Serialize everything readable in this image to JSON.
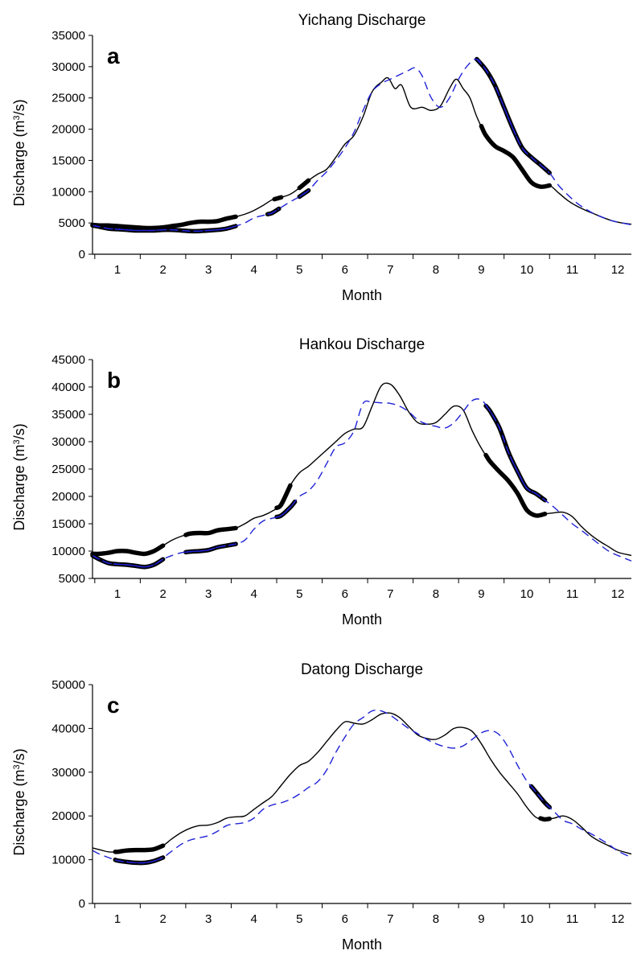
{
  "chart_data": [
    {
      "type": "line",
      "title": "Yichang Discharge",
      "panel_label": "a",
      "xlabel": "Month",
      "ylabel_prefix": "Discharge (m",
      "ylabel_sup": "3",
      "ylabel_suffix": "/s)",
      "xlim": [
        0.45,
        12.3
      ],
      "ylim": [
        0,
        35000
      ],
      "yticks": [
        0,
        5000,
        10000,
        15000,
        20000,
        25000,
        30000,
        35000
      ],
      "xticks": [
        1,
        2,
        3,
        4,
        5,
        6,
        7,
        8,
        9,
        10,
        11,
        12
      ],
      "x_boundaries": [
        0.5,
        1.5,
        2.5,
        3.5,
        4.5,
        5.5,
        6.5,
        7.5,
        8.5,
        9.5,
        10.5,
        11.5
      ],
      "series": [
        {
          "style": "solid",
          "color": "#000000",
          "x": [
            0.45,
            0.6,
            0.8,
            1.0,
            1.2,
            1.4,
            1.6,
            1.8,
            2.0,
            2.2,
            2.4,
            2.6,
            2.8,
            3.0,
            3.2,
            3.4,
            3.6,
            3.8,
            4.0,
            4.2,
            4.4,
            4.6,
            4.8,
            5.0,
            5.2,
            5.4,
            5.6,
            5.8,
            6.0,
            6.2,
            6.4,
            6.6,
            6.8,
            6.95,
            7.1,
            7.25,
            7.45,
            7.7,
            7.9,
            8.1,
            8.3,
            8.45,
            8.6,
            8.75,
            8.9,
            9.1,
            9.3,
            9.5,
            9.7,
            9.9,
            10.1,
            10.3,
            10.5,
            10.7,
            10.9,
            11.1,
            11.3,
            11.5,
            11.7,
            11.9,
            12.1,
            12.3
          ],
          "y": [
            4700,
            4600,
            4600,
            4500,
            4400,
            4300,
            4200,
            4200,
            4300,
            4500,
            4700,
            5000,
            5200,
            5200,
            5300,
            5700,
            6000,
            6400,
            7000,
            7800,
            8700,
            9100,
            9600,
            10600,
            11800,
            12800,
            13600,
            15500,
            17600,
            19000,
            22000,
            26000,
            27500,
            28200,
            26500,
            27000,
            23500,
            23500,
            23000,
            23700,
            26500,
            28000,
            26500,
            25000,
            22000,
            19000,
            17300,
            16500,
            15500,
            13500,
            11500,
            10800,
            11000,
            9800,
            8600,
            7700,
            7000,
            6400,
            5800,
            5300,
            5000,
            4800
          ],
          "bold_ranges": [
            [
              0.45,
              3.6
            ],
            [
              4.45,
              4.6
            ],
            [
              5.0,
              5.2
            ],
            [
              9.0,
              10.5
            ]
          ]
        },
        {
          "style": "dashed",
          "color": "#1f22d6",
          "x": [
            0.45,
            0.6,
            0.8,
            1.0,
            1.2,
            1.4,
            1.6,
            1.8,
            2.0,
            2.2,
            2.4,
            2.6,
            2.8,
            3.0,
            3.2,
            3.4,
            3.6,
            3.8,
            4.0,
            4.2,
            4.4,
            4.6,
            4.8,
            5.0,
            5.2,
            5.4,
            5.6,
            5.8,
            6.0,
            6.2,
            6.4,
            6.6,
            6.8,
            7.0,
            7.2,
            7.4,
            7.55,
            7.7,
            7.9,
            8.1,
            8.3,
            8.5,
            8.7,
            8.9,
            9.1,
            9.3,
            9.5,
            9.7,
            9.9,
            10.1,
            10.3,
            10.5,
            10.7,
            10.9,
            11.1,
            11.3,
            11.5,
            11.7,
            11.9,
            12.1,
            12.3
          ],
          "y": [
            4600,
            4400,
            4100,
            4000,
            3900,
            3800,
            3800,
            3800,
            3900,
            3900,
            3800,
            3700,
            3700,
            3800,
            3900,
            4100,
            4500,
            5000,
            5800,
            6200,
            6600,
            7500,
            8400,
            9200,
            10200,
            11800,
            13200,
            15000,
            17000,
            19500,
            23000,
            26000,
            27300,
            28000,
            28700,
            29400,
            29800,
            28500,
            25000,
            23500,
            25000,
            28000,
            30200,
            31200,
            29500,
            27000,
            23500,
            20000,
            17000,
            15500,
            14300,
            13000,
            11000,
            9500,
            8200,
            7200,
            6400,
            5800,
            5300,
            5000,
            4700
          ],
          "bold_ranges": [
            [
              0.45,
              3.6
            ],
            [
              4.3,
              4.55
            ],
            [
              5.0,
              5.2
            ],
            [
              8.9,
              10.5
            ]
          ]
        }
      ]
    },
    {
      "type": "line",
      "title": "Hankou Discharge",
      "panel_label": "b",
      "xlabel": "Month",
      "ylabel_prefix": "Discharge (m",
      "ylabel_sup": "3",
      "ylabel_suffix": "/s)",
      "xlim": [
        0.45,
        12.3
      ],
      "ylim": [
        5000,
        45000
      ],
      "yticks": [
        5000,
        10000,
        15000,
        20000,
        25000,
        30000,
        35000,
        40000,
        45000
      ],
      "xticks": [
        1,
        2,
        3,
        4,
        5,
        6,
        7,
        8,
        9,
        10,
        11,
        12
      ],
      "x_boundaries": [
        0.5,
        1.5,
        2.5,
        3.5,
        4.5,
        5.5,
        6.5,
        7.5,
        8.5,
        9.5,
        10.5,
        11.5
      ],
      "series": [
        {
          "style": "solid",
          "color": "#000000",
          "x": [
            0.45,
            0.6,
            0.8,
            1.0,
            1.2,
            1.4,
            1.6,
            1.8,
            2.0,
            2.2,
            2.4,
            2.6,
            2.8,
            3.0,
            3.2,
            3.4,
            3.6,
            3.8,
            4.0,
            4.2,
            4.4,
            4.6,
            4.8,
            5.0,
            5.2,
            5.4,
            5.6,
            5.8,
            6.0,
            6.2,
            6.4,
            6.6,
            6.8,
            7.0,
            7.2,
            7.4,
            7.6,
            7.8,
            8.0,
            8.2,
            8.4,
            8.6,
            8.8,
            9.0,
            9.2,
            9.4,
            9.6,
            9.8,
            10.0,
            10.2,
            10.4,
            10.6,
            10.8,
            11.0,
            11.2,
            11.4,
            11.6,
            11.8,
            12.0,
            12.3
          ],
          "y": [
            9500,
            9500,
            9700,
            10000,
            10000,
            9700,
            9500,
            10000,
            11000,
            12000,
            12700,
            13200,
            13300,
            13300,
            13800,
            14000,
            14200,
            15000,
            16000,
            16500,
            17300,
            18500,
            22000,
            24300,
            25500,
            27000,
            28500,
            30000,
            31500,
            32300,
            32700,
            36500,
            40200,
            40500,
            38500,
            35500,
            33500,
            33200,
            33500,
            35000,
            36500,
            35800,
            32000,
            28800,
            26300,
            24500,
            22800,
            20500,
            17500,
            16500,
            16800,
            17000,
            17100,
            16300,
            14500,
            13000,
            11800,
            10800,
            9800,
            9200
          ],
          "bold_ranges": [
            [
              0.45,
              2.0
            ],
            [
              2.5,
              3.6
            ],
            [
              4.5,
              4.8
            ],
            [
              9.1,
              10.4
            ]
          ]
        },
        {
          "style": "dashed",
          "color": "#1f22d6",
          "x": [
            0.45,
            0.6,
            0.8,
            1.0,
            1.2,
            1.4,
            1.6,
            1.8,
            2.0,
            2.2,
            2.4,
            2.6,
            2.8,
            3.0,
            3.2,
            3.4,
            3.6,
            3.8,
            4.0,
            4.2,
            4.4,
            4.6,
            4.8,
            5.0,
            5.2,
            5.4,
            5.6,
            5.8,
            6.0,
            6.2,
            6.4,
            6.6,
            6.8,
            7.0,
            7.2,
            7.4,
            7.6,
            7.8,
            8.0,
            8.2,
            8.4,
            8.6,
            8.8,
            9.0,
            9.2,
            9.4,
            9.6,
            9.8,
            10.0,
            10.2,
            10.4,
            10.6,
            10.8,
            11.0,
            11.2,
            11.4,
            11.6,
            11.8,
            12.0,
            12.3
          ],
          "y": [
            9200,
            8500,
            7800,
            7600,
            7500,
            7300,
            7100,
            7500,
            8500,
            9200,
            9700,
            9900,
            10000,
            10200,
            10700,
            11000,
            11300,
            12000,
            14000,
            15500,
            16000,
            16500,
            18000,
            20000,
            21000,
            23000,
            26000,
            29000,
            29800,
            32000,
            37000,
            37200,
            37100,
            37000,
            36500,
            35500,
            34000,
            33200,
            32800,
            32500,
            33500,
            35500,
            37500,
            37600,
            35500,
            32500,
            28000,
            24500,
            21500,
            20500,
            19300,
            18000,
            16500,
            15000,
            13800,
            12500,
            11200,
            10000,
            9200,
            8200
          ],
          "bold_ranges": [
            [
              0.45,
              2.0
            ],
            [
              2.5,
              3.6
            ],
            [
              4.5,
              4.9
            ],
            [
              9.1,
              10.4
            ]
          ]
        }
      ]
    },
    {
      "type": "line",
      "title": "Datong Discharge",
      "panel_label": "c",
      "xlabel": "Month",
      "ylabel_prefix": "Discharge (m",
      "ylabel_sup": "3",
      "ylabel_suffix": "/s)",
      "xlim": [
        0.45,
        12.3
      ],
      "ylim": [
        0,
        50000
      ],
      "yticks": [
        0,
        10000,
        20000,
        30000,
        40000,
        50000
      ],
      "xticks": [
        1,
        2,
        3,
        4,
        5,
        6,
        7,
        8,
        9,
        10,
        11,
        12
      ],
      "x_boundaries": [
        0.5,
        1.5,
        2.5,
        3.5,
        4.5,
        5.5,
        6.5,
        7.5,
        8.5,
        9.5,
        10.5,
        11.5
      ],
      "series": [
        {
          "style": "solid",
          "color": "#000000",
          "x": [
            0.45,
            0.6,
            0.8,
            1.0,
            1.2,
            1.4,
            1.6,
            1.8,
            2.0,
            2.2,
            2.4,
            2.6,
            2.8,
            3.0,
            3.2,
            3.4,
            3.6,
            3.8,
            4.0,
            4.2,
            4.4,
            4.6,
            4.8,
            5.0,
            5.2,
            5.4,
            5.6,
            5.8,
            6.0,
            6.2,
            6.4,
            6.6,
            6.8,
            7.0,
            7.2,
            7.4,
            7.6,
            7.8,
            8.0,
            8.2,
            8.4,
            8.6,
            8.8,
            9.0,
            9.2,
            9.4,
            9.6,
            9.8,
            10.0,
            10.2,
            10.4,
            10.6,
            10.8,
            11.0,
            11.2,
            11.4,
            11.6,
            11.8,
            12.0,
            12.3
          ],
          "y": [
            12700,
            12300,
            11800,
            11800,
            12100,
            12200,
            12200,
            12400,
            13200,
            14800,
            16200,
            17200,
            17800,
            17900,
            18500,
            19500,
            19800,
            20000,
            21500,
            23000,
            24500,
            27000,
            29500,
            31500,
            32500,
            34500,
            37000,
            39500,
            41500,
            41200,
            41000,
            42000,
            43300,
            43500,
            42500,
            40500,
            38500,
            37700,
            37500,
            38500,
            40000,
            40200,
            39300,
            36500,
            33000,
            30000,
            27500,
            25000,
            22000,
            19700,
            19200,
            19500,
            20000,
            19200,
            17500,
            15500,
            14200,
            13200,
            12200,
            11300
          ],
          "bold_ranges": [
            [
              0.95,
              2.0
            ],
            [
              10.3,
              10.5
            ]
          ]
        },
        {
          "style": "dashed",
          "color": "#1f22d6",
          "x": [
            0.45,
            0.6,
            0.8,
            1.0,
            1.2,
            1.4,
            1.6,
            1.8,
            2.0,
            2.2,
            2.4,
            2.6,
            2.8,
            3.0,
            3.2,
            3.4,
            3.6,
            3.8,
            4.0,
            4.2,
            4.4,
            4.6,
            4.8,
            5.0,
            5.2,
            5.4,
            5.6,
            5.8,
            6.0,
            6.2,
            6.4,
            6.6,
            6.8,
            7.0,
            7.2,
            7.4,
            7.6,
            7.8,
            8.0,
            8.2,
            8.4,
            8.6,
            8.8,
            9.0,
            9.2,
            9.4,
            9.6,
            9.8,
            10.0,
            10.2,
            10.4,
            10.6,
            10.8,
            11.0,
            11.2,
            11.4,
            11.6,
            11.8,
            12.0,
            12.3
          ],
          "y": [
            12100,
            11300,
            10500,
            9800,
            9500,
            9300,
            9300,
            9700,
            10500,
            12000,
            13500,
            14500,
            15000,
            15500,
            16500,
            17800,
            18200,
            18500,
            19500,
            21500,
            22500,
            23000,
            23800,
            25000,
            26500,
            27800,
            30500,
            34500,
            38000,
            41000,
            42500,
            44000,
            44000,
            43000,
            41500,
            40000,
            38800,
            37500,
            36500,
            35800,
            35500,
            36000,
            37500,
            39000,
            39500,
            38500,
            35500,
            31500,
            28000,
            25500,
            23000,
            21000,
            19000,
            18200,
            17000,
            16000,
            14800,
            13500,
            12000,
            10500
          ],
          "bold_ranges": [
            [
              0.95,
              2.0
            ],
            [
              10.1,
              10.5
            ]
          ]
        }
      ]
    }
  ]
}
